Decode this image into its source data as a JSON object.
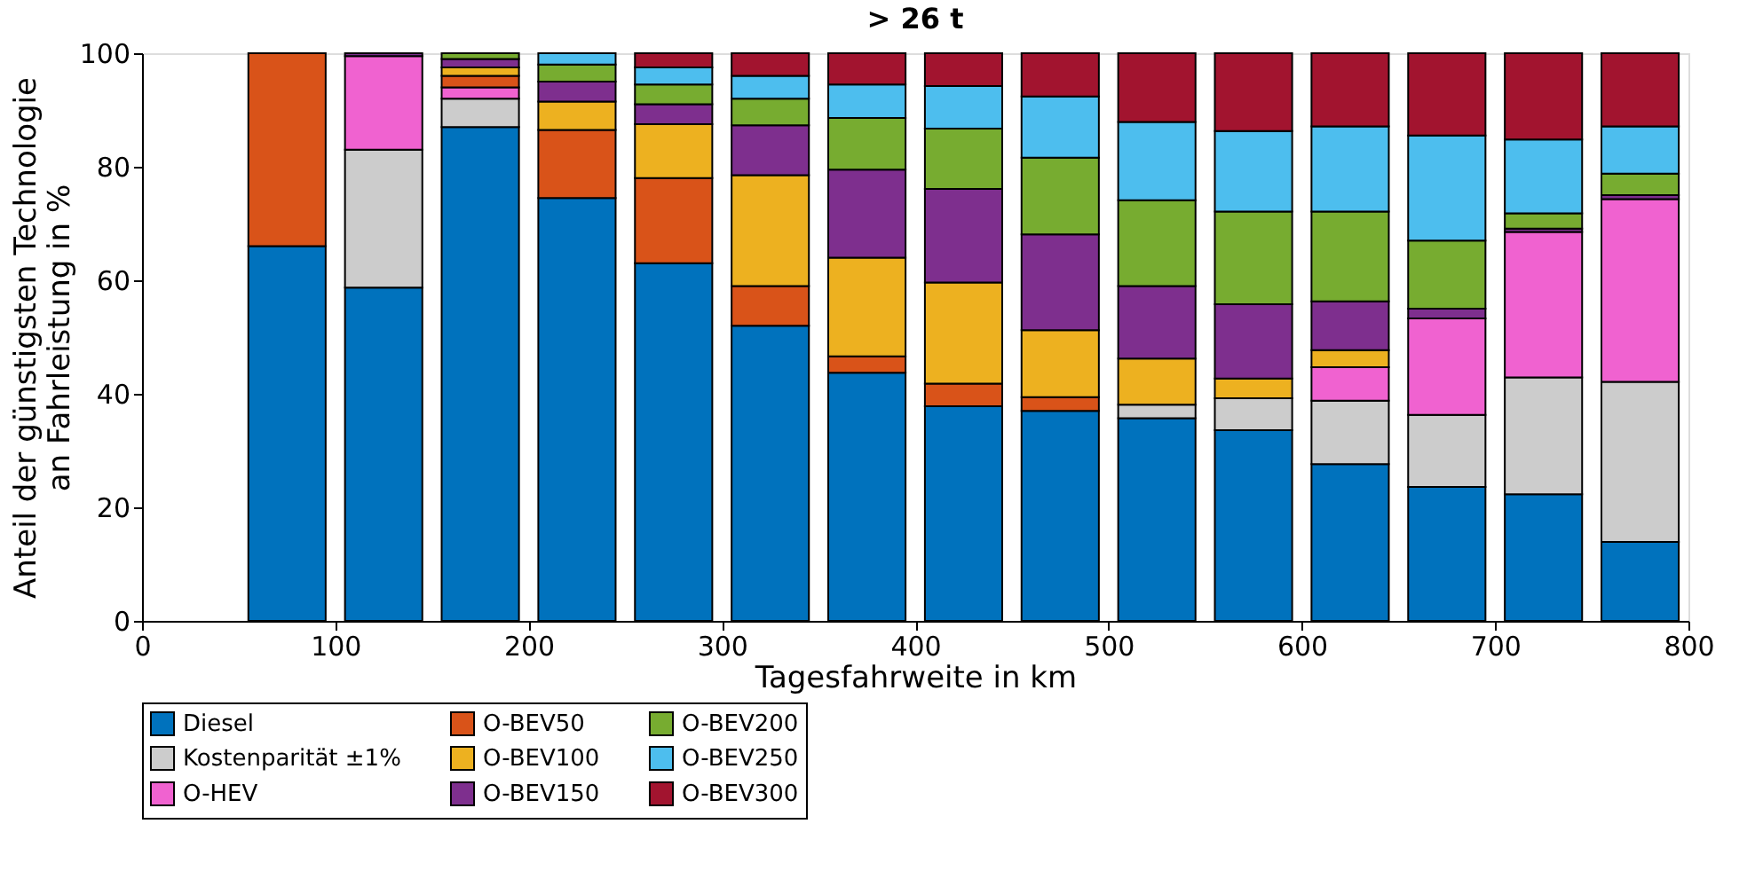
{
  "chart_data": {
    "type": "bar",
    "stacked": true,
    "title": "> 26 t",
    "xlabel": "Tagesfahrweite in km",
    "ylabel": "Anteil der günstigsten Technologie\nan Fahrleistung in %",
    "x": [
      75,
      125,
      175,
      225,
      275,
      325,
      375,
      425,
      475,
      525,
      575,
      625,
      675,
      725,
      775
    ],
    "xlim": [
      0,
      800
    ],
    "xticks": [
      0,
      100,
      200,
      300,
      400,
      500,
      600,
      700,
      800
    ],
    "ylim": [
      0,
      100
    ],
    "yticks": [
      0,
      20,
      40,
      60,
      80,
      100
    ],
    "grid": false,
    "legend": "bottom",
    "series": [
      {
        "name": "Diesel",
        "color": "#0072bd",
        "values": [
          66,
          58.7,
          87,
          74.5,
          63,
          52,
          43.7,
          37.8,
          37,
          35.7,
          33.6,
          27.6,
          23.6,
          22.3,
          13.9
        ]
      },
      {
        "name": "Kostenparität ±1%",
        "color": "#cccccc",
        "values": [
          null,
          24.3,
          5,
          null,
          null,
          null,
          null,
          null,
          null,
          2.4,
          5.6,
          11.2,
          12.7,
          20.6,
          28.2
        ]
      },
      {
        "name": "O-HEV",
        "color": "#f062d0",
        "values": [
          null,
          16.5,
          2,
          null,
          null,
          null,
          null,
          null,
          null,
          null,
          null,
          5.9,
          17,
          25.6,
          32.2
        ]
      },
      {
        "name": "O-BEV50",
        "color": "#d95319",
        "values": [
          34,
          null,
          2,
          12,
          15,
          7,
          2.9,
          4,
          2.4,
          null,
          null,
          null,
          null,
          null,
          null
        ]
      },
      {
        "name": "O-BEV100",
        "color": "#edb120",
        "values": [
          null,
          null,
          1.5,
          5,
          9.5,
          19.5,
          17.4,
          17.8,
          11.8,
          8.1,
          3.5,
          3,
          null,
          null,
          null
        ]
      },
      {
        "name": "O-BEV150",
        "color": "#7e2f8e",
        "values": [
          null,
          0.5,
          1.5,
          3.5,
          3.5,
          8.8,
          15.5,
          16.5,
          16.9,
          12.8,
          13.1,
          8.6,
          1.7,
          0.6,
          0.7
        ]
      },
      {
        "name": "O-BEV200",
        "color": "#77ac30",
        "values": [
          null,
          null,
          1,
          3,
          3.5,
          4.7,
          9.1,
          10.6,
          13.5,
          15.1,
          16.3,
          15.8,
          12,
          2.7,
          3.8
        ]
      },
      {
        "name": "O-BEV250",
        "color": "#4dbeee",
        "values": [
          null,
          null,
          null,
          2,
          3,
          4,
          5.9,
          7.5,
          10.8,
          13.8,
          14.2,
          15,
          18.5,
          13,
          8.3
        ]
      },
      {
        "name": "O-BEV300",
        "color": "#a2142f",
        "values": [
          null,
          null,
          null,
          null,
          2.5,
          4,
          5.5,
          5.8,
          7.6,
          12.1,
          13.7,
          12.9,
          14.5,
          15.2,
          12.9
        ]
      }
    ]
  }
}
